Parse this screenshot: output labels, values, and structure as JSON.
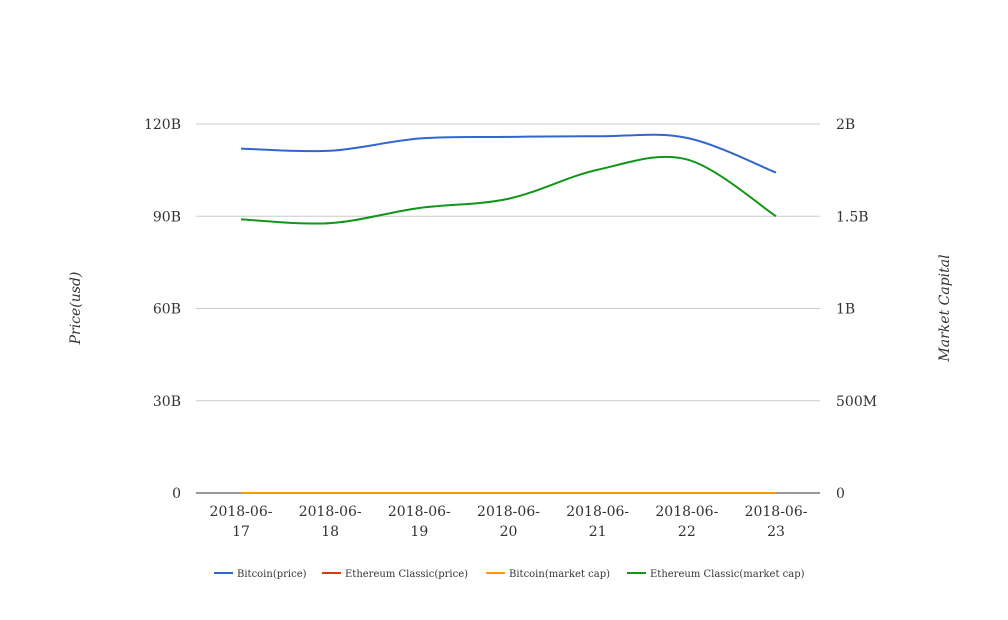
{
  "chart_data": {
    "type": "line",
    "title": "",
    "x": [
      "2018-06-17",
      "2018-06-18",
      "2018-06-19",
      "2018-06-20",
      "2018-06-21",
      "2018-06-22",
      "2018-06-23"
    ],
    "x_tick_labels": [
      [
        "2018-06-",
        "17"
      ],
      [
        "2018-06-",
        "18"
      ],
      [
        "2018-06-",
        "19"
      ],
      [
        "2018-06-",
        "20"
      ],
      [
        "2018-06-",
        "21"
      ],
      [
        "2018-06-",
        "22"
      ],
      [
        "2018-06-",
        "23"
      ]
    ],
    "y_left": {
      "label": "Price(usd)",
      "range": [
        0,
        120000000000
      ],
      "ticks": [
        0,
        30000000000,
        60000000000,
        90000000000,
        120000000000
      ],
      "tick_labels": [
        "0",
        "30B",
        "60B",
        "90B",
        "120B"
      ]
    },
    "y_right": {
      "label": "Market Capital",
      "range": [
        0,
        2000000000
      ],
      "ticks": [
        0,
        500000000,
        1000000000,
        1500000000,
        2000000000
      ],
      "tick_labels": [
        "0",
        "500M",
        "1B",
        "1.5B",
        "2B"
      ]
    },
    "grid": true,
    "legend_position": "bottom",
    "series": [
      {
        "name": "Bitcoin(price)",
        "axis": "left",
        "color": "#3366cc",
        "values": [
          112000000000,
          111300000000,
          115300000000,
          115800000000,
          116000000000,
          115500000000,
          104200000000
        ]
      },
      {
        "name": "Ethereum Classic(price)",
        "axis": "left",
        "color": "#dc3912",
        "values": [
          0,
          0,
          0,
          0,
          0,
          0,
          0
        ]
      },
      {
        "name": "Bitcoin(market cap)",
        "axis": "right",
        "color": "#ff9900",
        "values": [
          0,
          0,
          0,
          0,
          0,
          0,
          0
        ]
      },
      {
        "name": "Ethereum Classic(market cap)",
        "axis": "right",
        "color": "#109618",
        "values": [
          1483000000,
          1463000000,
          1545000000,
          1595000000,
          1752000000,
          1808000000,
          1500000000
        ]
      }
    ]
  }
}
